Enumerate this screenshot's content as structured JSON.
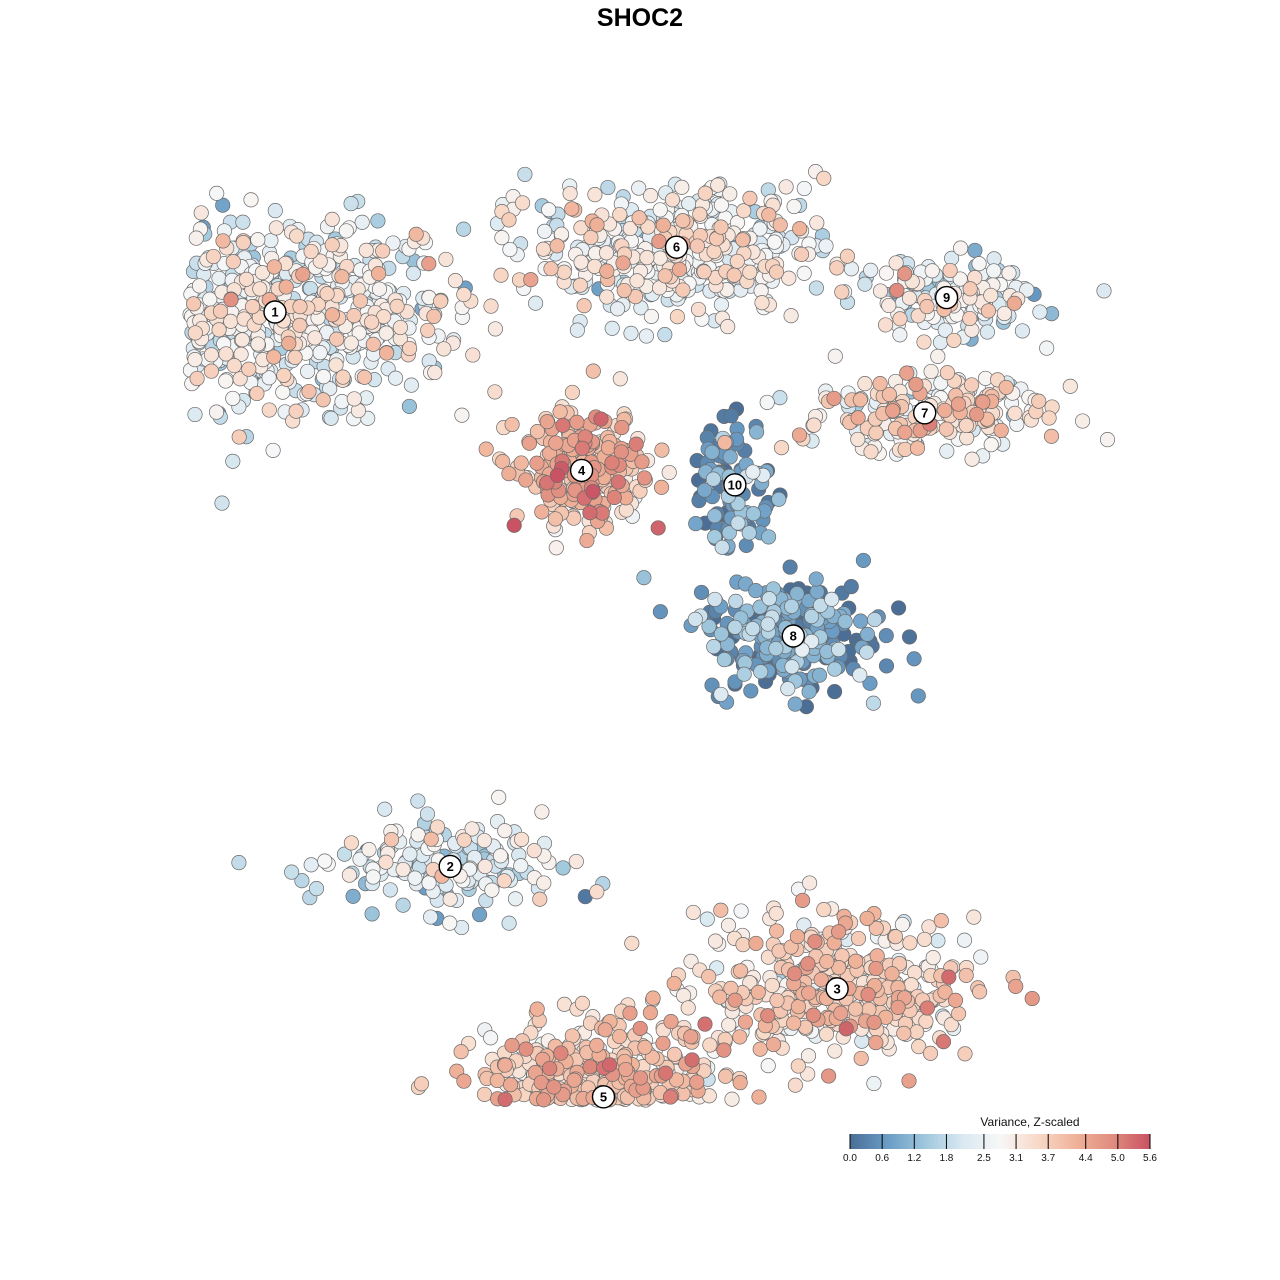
{
  "chart_data": {
    "type": "scatter",
    "title": "SHOC2",
    "xlabel": "",
    "ylabel": "",
    "grid": false,
    "legend": {
      "title": "Variance, Z-scaled",
      "placement": "bottom-right",
      "ticks": [
        "0.0",
        "0.6",
        "1.2",
        "1.8",
        "2.5",
        "3.1",
        "3.7",
        "4.4",
        "5.0",
        "5.6"
      ],
      "range": [
        0,
        5.6
      ],
      "colors": [
        "#4a6e96",
        "#6a9cc5",
        "#9fc7dd",
        "#d9e8f1",
        "#f7f7f7",
        "#f8d9c8",
        "#f0b39a",
        "#e08c7e",
        "#c95263"
      ]
    },
    "clusters": [
      {
        "label": "1",
        "x": -5.0,
        "y": 4.0,
        "spread": [
          2.3,
          1.2
        ],
        "mean_value": 2.6,
        "count": 700
      },
      {
        "label": "2",
        "x": -2.6,
        "y": -3.7,
        "spread": [
          1.4,
          0.6
        ],
        "mean_value": 2.2,
        "count": 180
      },
      {
        "label": "3",
        "x": 2.7,
        "y": -5.4,
        "spread": [
          1.7,
          0.9
        ],
        "mean_value": 3.4,
        "count": 420
      },
      {
        "label": "4",
        "x": -0.8,
        "y": 1.8,
        "spread": [
          0.8,
          0.7
        ],
        "mean_value": 3.9,
        "count": 260
      },
      {
        "label": "5",
        "x": -0.5,
        "y": -6.9,
        "spread": [
          1.5,
          0.9
        ],
        "mean_value": 3.6,
        "count": 650
      },
      {
        "label": "6",
        "x": 0.5,
        "y": 4.9,
        "spread": [
          1.8,
          0.8
        ],
        "mean_value": 2.7,
        "count": 450
      },
      {
        "label": "7",
        "x": 3.9,
        "y": 2.6,
        "spread": [
          1.5,
          0.5
        ],
        "mean_value": 3.1,
        "count": 220
      },
      {
        "label": "8",
        "x": 2.1,
        "y": -0.5,
        "spread": [
          1.1,
          0.7
        ],
        "mean_value": 0.7,
        "count": 260
      },
      {
        "label": "9",
        "x": 4.2,
        "y": 4.2,
        "spread": [
          1.1,
          0.5
        ],
        "mean_value": 2.4,
        "count": 170
      },
      {
        "label": "10",
        "x": 1.3,
        "y": 1.6,
        "spread": [
          0.5,
          0.8
        ],
        "mean_value": 0.6,
        "count": 110
      }
    ]
  }
}
